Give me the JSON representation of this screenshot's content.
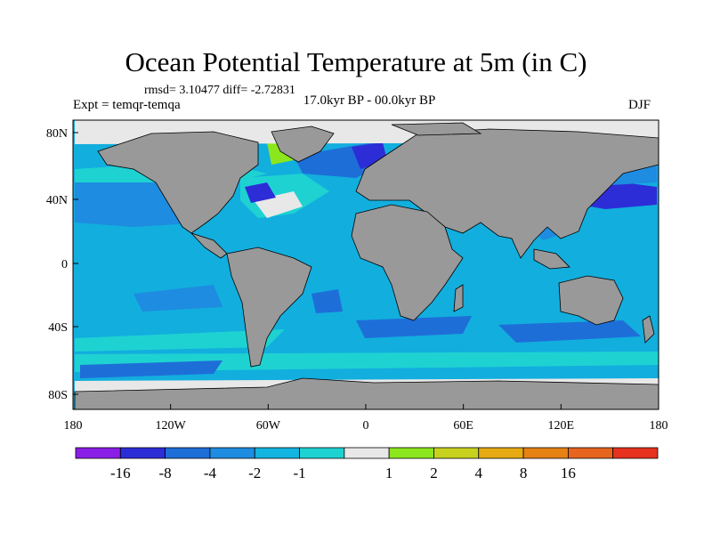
{
  "title": "Ocean Potential Temperature at 5m (in C)",
  "stats": "rmsd= 3.10477 diff= -2.72831",
  "experiment": "Expt = temqr-temqa",
  "period": "17.0kyr BP - 00.0kyr BP",
  "season": "DJF",
  "axes": {
    "x_ticks": [
      {
        "value": -180,
        "label": "180"
      },
      {
        "value": -120,
        "label": "120W"
      },
      {
        "value": -60,
        "label": "60W"
      },
      {
        "value": 0,
        "label": "0"
      },
      {
        "value": 60,
        "label": "60E"
      },
      {
        "value": 120,
        "label": "120E"
      },
      {
        "value": 180,
        "label": "180"
      }
    ],
    "y_ticks": [
      {
        "value": 80,
        "label": "80N"
      },
      {
        "value": 40,
        "label": "40N"
      },
      {
        "value": 0,
        "label": "0"
      },
      {
        "value": -40,
        "label": "40S"
      },
      {
        "value": -80,
        "label": "80S"
      }
    ],
    "lon_range": [
      -180,
      180
    ],
    "lat_range": [
      -90,
      90
    ]
  },
  "colorbar": {
    "colors": [
      "#8a1ee6",
      "#2d2dd8",
      "#1e6ed8",
      "#1e8ce0",
      "#12b4e0",
      "#1ed2d2",
      "#e8e8e8",
      "#8ce61e",
      "#c8d21e",
      "#e6aa12",
      "#e68214",
      "#e6641e",
      "#e6321e"
    ],
    "labels": [
      "-16",
      "-8",
      "-4",
      "-2",
      "-1",
      "1",
      "2",
      "4",
      "8",
      "16"
    ]
  },
  "map": {
    "ocean_color": "#12aede",
    "land_color": "#999999",
    "ice_color": "#e8e8e8"
  }
}
